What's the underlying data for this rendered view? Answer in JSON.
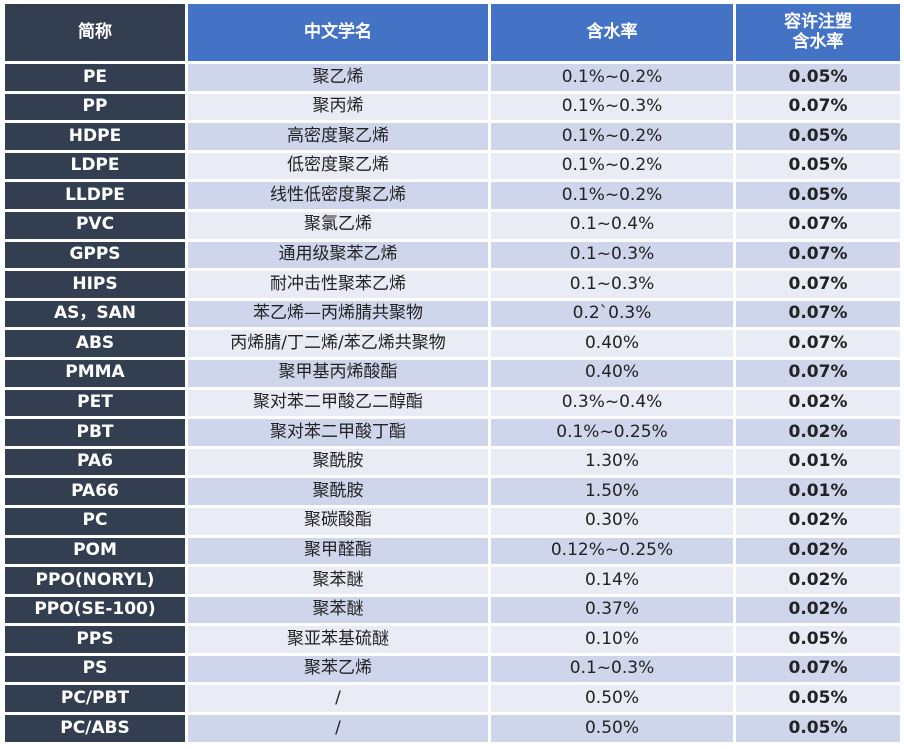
{
  "table": {
    "header": [
      "简称",
      "中文学名",
      "含水率",
      "容许注塑\n含水率"
    ],
    "rows": [
      [
        "PE",
        "聚乙烯",
        "0.1%~0.2%",
        "0.05%"
      ],
      [
        "PP",
        "聚丙烯",
        "0.1%~0.3%",
        "0.07%"
      ],
      [
        "HDPE",
        "高密度聚乙烯",
        "0.1%~0.2%",
        "0.05%"
      ],
      [
        "LDPE",
        "低密度聚乙烯",
        "0.1%~0.2%",
        "0.05%"
      ],
      [
        "LLDPE",
        "线性低密度聚乙烯",
        "0.1%~0.2%",
        "0.05%"
      ],
      [
        "PVC",
        "聚氯乙烯",
        "0.1~0.4%",
        "0.07%"
      ],
      [
        "GPPS",
        "通用级聚苯乙烯",
        "0.1~0.3%",
        "0.07%"
      ],
      [
        "HIPS",
        "耐冲击性聚苯乙烯",
        "0.1~0.3%",
        "0.07%"
      ],
      [
        "AS，SAN",
        "苯乙烯—丙烯腈共聚物",
        "0.2`0.3%",
        "0.07%"
      ],
      [
        "ABS",
        "丙烯腈/丁二烯/苯乙烯共聚物",
        "0.40%",
        "0.07%"
      ],
      [
        "PMMA",
        "聚甲基丙烯酸酯",
        "0.40%",
        "0.07%"
      ],
      [
        "PET",
        "聚对苯二甲酸乙二醇酯",
        "0.3%~0.4%",
        "0.02%"
      ],
      [
        "PBT",
        "聚对苯二甲酸丁酯",
        "0.1%~0.25%",
        "0.02%"
      ],
      [
        "PA6",
        "聚酰胺",
        "1.30%",
        "0.01%"
      ],
      [
        "PA66",
        "聚酰胺",
        "1.50%",
        "0.01%"
      ],
      [
        "PC",
        "聚碳酸酯",
        "0.30%",
        "0.02%"
      ],
      [
        "POM",
        "聚甲醛酯",
        "0.12%~0.25%",
        "0.02%"
      ],
      [
        "PPO(NORYL)",
        "聚苯醚",
        "0.14%",
        "0.02%"
      ],
      [
        "PPO(SE-100)",
        "聚苯醚",
        "0.37%",
        "0.02%"
      ],
      [
        "PPS",
        "聚亚苯基硫醚",
        "0.10%",
        "0.05%"
      ],
      [
        "PS",
        "聚苯乙烯",
        "0.1~0.3%",
        "0.07%"
      ],
      [
        "PC/PBT",
        "/",
        "0.50%",
        "0.05%"
      ],
      [
        "PC/ABS",
        "/",
        "0.50%",
        "0.05%"
      ]
    ]
  }
}
